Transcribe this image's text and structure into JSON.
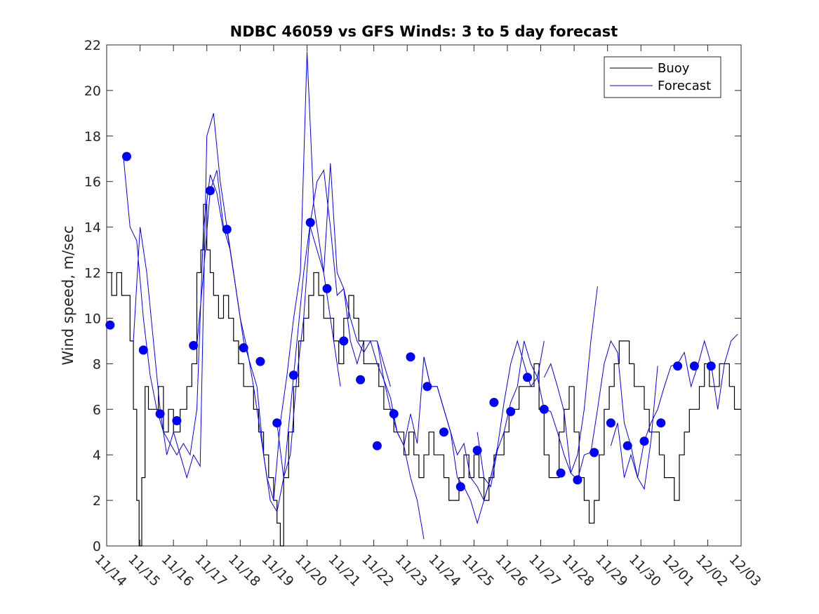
{
  "chart_data": {
    "type": "line",
    "title": "NDBC 46059 vs GFS Winds: 3 to 5 day forecast",
    "xlabel": "",
    "ylabel": "Wind speed, m/sec",
    "xlim": [
      0,
      19
    ],
    "ylim": [
      0,
      22
    ],
    "yticks": [
      0,
      2,
      4,
      6,
      8,
      10,
      12,
      14,
      16,
      18,
      20,
      22
    ],
    "xtick_labels": [
      "11/14",
      "11/15",
      "11/16",
      "11/17",
      "11/18",
      "11/19",
      "11/20",
      "11/21",
      "11/22",
      "11/23",
      "11/24",
      "11/25",
      "11/26",
      "11/27",
      "11/28",
      "11/29",
      "11/30",
      "12/01",
      "12/02",
      "12/03"
    ],
    "legend": {
      "placement": "top-right",
      "entries": [
        "Buoy",
        "Forecast"
      ]
    },
    "colors": {
      "buoy": "#000000",
      "forecast": "#0000ff",
      "axes": "#262626"
    },
    "series": [
      {
        "name": "Buoy",
        "x": [
          0,
          0.15,
          0.3,
          0.45,
          0.6,
          0.7,
          0.8,
          0.9,
          0.97,
          1.05,
          1.15,
          1.25,
          1.4,
          1.55,
          1.7,
          1.85,
          2.0,
          2.2,
          2.4,
          2.55,
          2.7,
          2.82,
          2.9,
          3.0,
          3.1,
          3.2,
          3.35,
          3.5,
          3.65,
          3.8,
          3.95,
          4.1,
          4.25,
          4.4,
          4.55,
          4.7,
          4.85,
          5.0,
          5.1,
          5.2,
          5.3,
          5.45,
          5.6,
          5.75,
          5.9,
          6.05,
          6.2,
          6.35,
          6.5,
          6.65,
          6.8,
          6.95,
          7.1,
          7.25,
          7.4,
          7.55,
          7.7,
          7.85,
          8.0,
          8.15,
          8.3,
          8.45,
          8.6,
          8.75,
          8.9,
          9.05,
          9.2,
          9.35,
          9.5,
          9.65,
          9.8,
          9.95,
          10.1,
          10.25,
          10.4,
          10.55,
          10.7,
          10.85,
          11.0,
          11.15,
          11.3,
          11.45,
          11.6,
          11.75,
          11.9,
          12.05,
          12.2,
          12.35,
          12.5,
          12.65,
          12.8,
          12.95,
          13.1,
          13.25,
          13.4,
          13.55,
          13.7,
          13.85,
          14.0,
          14.15,
          14.3,
          14.45,
          14.6,
          14.75,
          14.9,
          15.05,
          15.2,
          15.35,
          15.5,
          15.65,
          15.8,
          15.95,
          16.1,
          16.25,
          16.4,
          16.55,
          16.7,
          16.85,
          17.0,
          17.15,
          17.3,
          17.45,
          17.6,
          17.75,
          17.9,
          18.05,
          18.2,
          18.35,
          18.5,
          18.65,
          18.8,
          18.95,
          19.0
        ],
        "values": [
          12,
          11,
          12,
          11,
          11,
          9,
          6,
          2,
          0,
          3,
          7,
          6,
          6,
          7,
          5,
          6,
          5,
          6,
          7,
          8,
          12,
          13,
          15,
          13,
          12,
          11,
          10,
          11,
          10,
          9,
          8,
          7,
          7,
          6,
          5,
          4,
          3,
          2,
          1,
          0,
          3,
          5,
          7,
          9,
          10,
          11,
          12,
          11,
          10,
          10,
          9,
          8,
          10,
          11,
          10,
          9,
          8,
          8,
          8,
          7,
          6,
          6,
          5,
          5,
          4,
          5,
          4,
          3,
          4,
          5,
          4,
          4,
          3,
          2,
          2,
          3,
          4,
          3,
          4,
          3,
          2,
          3,
          4,
          4,
          5,
          6,
          6,
          7,
          7,
          7,
          8,
          6,
          4,
          3,
          3,
          5,
          6,
          7,
          5,
          3,
          2,
          1,
          2,
          4,
          6,
          7,
          8,
          9,
          9,
          8,
          7,
          7,
          6,
          5,
          5,
          4,
          3,
          3,
          2,
          4,
          5,
          6,
          6,
          7,
          8,
          7,
          7,
          8,
          8,
          7,
          6,
          6,
          6
        ]
      },
      {
        "name": "Forecast",
        "runs": [
          {
            "x": [
              0.5,
              0.7,
              0.9,
              1.1,
              1.3,
              1.5,
              1.7,
              1.9,
              2.1,
              2.3,
              2.5,
              2.7,
              2.9,
              3.1,
              3.3,
              3.5
            ],
            "values": [
              17.1,
              14,
              13.4,
              10,
              7.5,
              6,
              5,
              4.5,
              4,
              4.5,
              4,
              6,
              14,
              16.3,
              15.5,
              13.8
            ]
          },
          {
            "x": [
              0.8,
              1.0,
              1.2,
              1.4,
              1.6,
              1.8,
              2.0,
              2.2,
              2.4,
              2.6,
              2.8,
              3.0,
              3.2,
              3.4,
              3.6,
              3.8
            ],
            "values": [
              9,
              14,
              12,
              9,
              6,
              4,
              5,
              4,
              3,
              4,
              3.5,
              18,
              19,
              16,
              14,
              12
            ]
          },
          {
            "x": [
              2.7,
              2.9,
              3.1,
              3.3,
              3.5,
              3.7,
              3.9,
              4.1,
              4.3,
              4.5,
              4.7,
              4.9,
              5.1,
              5.3,
              5.5,
              5.7,
              5.9,
              6.1
            ],
            "values": [
              8.8,
              12,
              15.6,
              16.5,
              14,
              13,
              11,
              9,
              8,
              7,
              4,
              2,
              1.5,
              3,
              6,
              9,
              12,
              14.2
            ]
          },
          {
            "x": [
              3.6,
              3.8,
              4.0,
              4.2,
              4.4,
              4.6,
              4.8,
              5.0,
              5.2,
              5.4,
              5.6,
              5.8,
              6.0,
              6.2,
              6.4,
              6.6,
              6.8,
              7.0
            ],
            "values": [
              13.9,
              12,
              10,
              8.7,
              7,
              5,
              3,
              2,
              5.4,
              7.5,
              10,
              12,
              21.7,
              15,
              13,
              11,
              9,
              7
            ]
          },
          {
            "x": [
              5.1,
              5.3,
              5.5,
              5.7,
              5.9,
              6.1,
              6.3,
              6.5,
              6.7,
              6.9,
              7.1,
              7.3,
              7.5,
              7.7,
              7.9,
              8.1,
              8.3,
              8.5
            ],
            "values": [
              5.4,
              3,
              4,
              7.5,
              10,
              14.2,
              16,
              16.5,
              14,
              11,
              11.3,
              10,
              9,
              8.5,
              9,
              9,
              8,
              7
            ]
          },
          {
            "x": [
              6.1,
              6.3,
              6.5,
              6.7,
              6.9,
              7.1,
              7.3,
              7.5,
              7.7,
              7.9,
              8.1,
              8.3,
              8.5,
              8.7,
              8.9,
              9.1,
              9.3,
              9.5
            ],
            "values": [
              14,
              13,
              12,
              16.8,
              12,
              11.3,
              9,
              8,
              9,
              9,
              8,
              7.3,
              6,
              5,
              4.4,
              3,
              2,
              0.3
            ]
          },
          {
            "x": [
              8.1,
              8.3,
              8.5,
              8.7,
              8.9,
              9.1,
              9.3,
              9.5,
              9.7,
              9.9,
              10.1,
              10.3,
              10.5,
              10.7,
              10.9,
              11.1,
              11.3,
              11.5,
              11.7
            ],
            "values": [
              9,
              7.3,
              6.5,
              5,
              4.4,
              5.8,
              4.5,
              8.3,
              7,
              7,
              6,
              5,
              3,
              2.6,
              2,
              1,
              2,
              3,
              4.3
            ]
          },
          {
            "x": [
              9.5,
              9.7,
              9.9,
              10.1,
              10.3,
              10.5,
              10.7,
              10.9,
              11.1,
              11.3,
              11.5,
              11.7,
              11.9,
              12.1,
              12.3,
              12.5,
              12.7,
              12.9,
              13.1
            ],
            "values": [
              8.3,
              7,
              7,
              6,
              5,
              4,
              4.5,
              3,
              2.6,
              2,
              3,
              4.3,
              6.3,
              8,
              9,
              8,
              7,
              7.4,
              9
            ]
          },
          {
            "x": [
              11.1,
              11.3,
              11.5,
              11.7,
              11.9,
              12.1,
              12.3,
              12.5,
              12.7,
              12.9,
              13.1,
              13.3,
              13.5,
              13.7,
              13.9,
              14.1,
              14.3,
              14.5,
              14.7
            ],
            "values": [
              5,
              3,
              2.6,
              4.2,
              5,
              6.3,
              7,
              9,
              8,
              7.4,
              6,
              5.9,
              5,
              4,
              3.2,
              4,
              6,
              9,
              11.4
            ]
          },
          {
            "x": [
              13.1,
              13.3,
              13.5,
              13.7,
              13.9,
              14.1,
              14.3,
              14.5,
              14.7,
              14.9,
              15.1,
              15.3,
              15.5,
              15.7,
              15.9,
              16.1,
              16.3,
              16.5
            ],
            "values": [
              7.4,
              8,
              7,
              5.9,
              3.2,
              2.9,
              4,
              4.1,
              6,
              8,
              9,
              8.5,
              5.4,
              4.4,
              3,
              2.5,
              4.6,
              7.9
            ]
          },
          {
            "x": [
              15.1,
              15.3,
              15.5,
              15.7,
              15.9,
              16.1,
              16.3,
              16.5,
              16.7,
              16.9,
              17.1,
              17.3,
              17.5,
              17.7,
              17.9,
              18.1,
              18.3,
              18.5,
              18.7,
              18.9
            ],
            "values": [
              4.4,
              5.4,
              3,
              4,
              3,
              4.6,
              5.4,
              6,
              7,
              7.9,
              8,
              8.5,
              7,
              7.9,
              9,
              8,
              6,
              8,
              9,
              9.3
            ]
          }
        ]
      },
      {
        "name": "Forecast markers",
        "x": [
          0.1,
          0.6,
          1.1,
          1.6,
          2.1,
          2.6,
          3.1,
          3.6,
          4.1,
          4.6,
          5.1,
          5.6,
          6.1,
          6.6,
          7.1,
          7.6,
          8.1,
          8.6,
          9.1,
          9.6,
          10.1,
          10.6,
          11.1,
          11.6,
          12.1,
          12.6,
          13.1,
          13.6,
          14.1,
          14.6,
          15.1,
          15.6,
          16.1,
          16.6,
          17.1,
          17.6,
          18.1
        ],
        "values": [
          9.7,
          17.1,
          8.6,
          5.8,
          5.5,
          8.8,
          15.6,
          13.9,
          8.7,
          8.1,
          5.4,
          7.5,
          14.2,
          11.3,
          9.0,
          7.3,
          4.4,
          5.8,
          8.3,
          7.0,
          5.0,
          2.6,
          4.2,
          6.3,
          5.9,
          7.4,
          6.0,
          3.2,
          2.9,
          4.1,
          5.4,
          4.4,
          4.6,
          5.4,
          7.9,
          7.9,
          7.9
        ]
      }
    ]
  }
}
